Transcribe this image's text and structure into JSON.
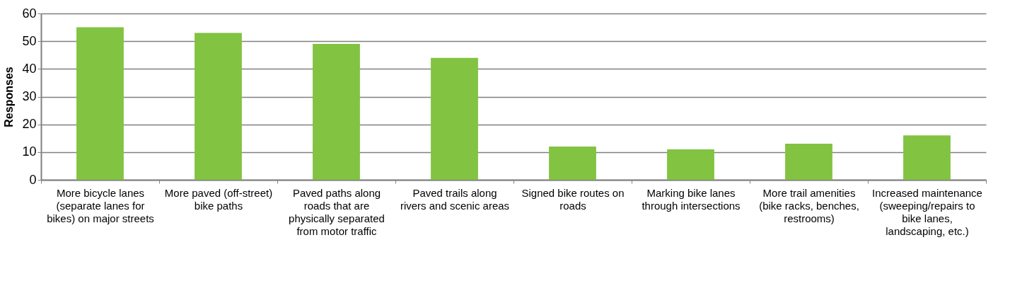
{
  "chart_data": {
    "type": "bar",
    "ylabel": "Responses",
    "categories": [
      "More bicycle lanes (separate lanes for bikes) on major streets",
      "More paved (off-street) bike paths",
      "Paved paths along roads that are physically separated from motor traffic",
      "Paved trails along rivers and scenic areas",
      "Signed bike routes on roads",
      "Marking bike lanes through intersections",
      "More trail amenities (bike racks, benches, restrooms)",
      "Increased maintenance (sweeping/repairs to bike lanes, landscaping, etc.)"
    ],
    "values": [
      55,
      53,
      49,
      44,
      12,
      11,
      13,
      16
    ],
    "color": "#82c341",
    "ylim": [
      0,
      60
    ],
    "yticks": [
      0,
      10,
      20,
      30,
      40,
      50,
      60
    ],
    "grid": "y"
  }
}
